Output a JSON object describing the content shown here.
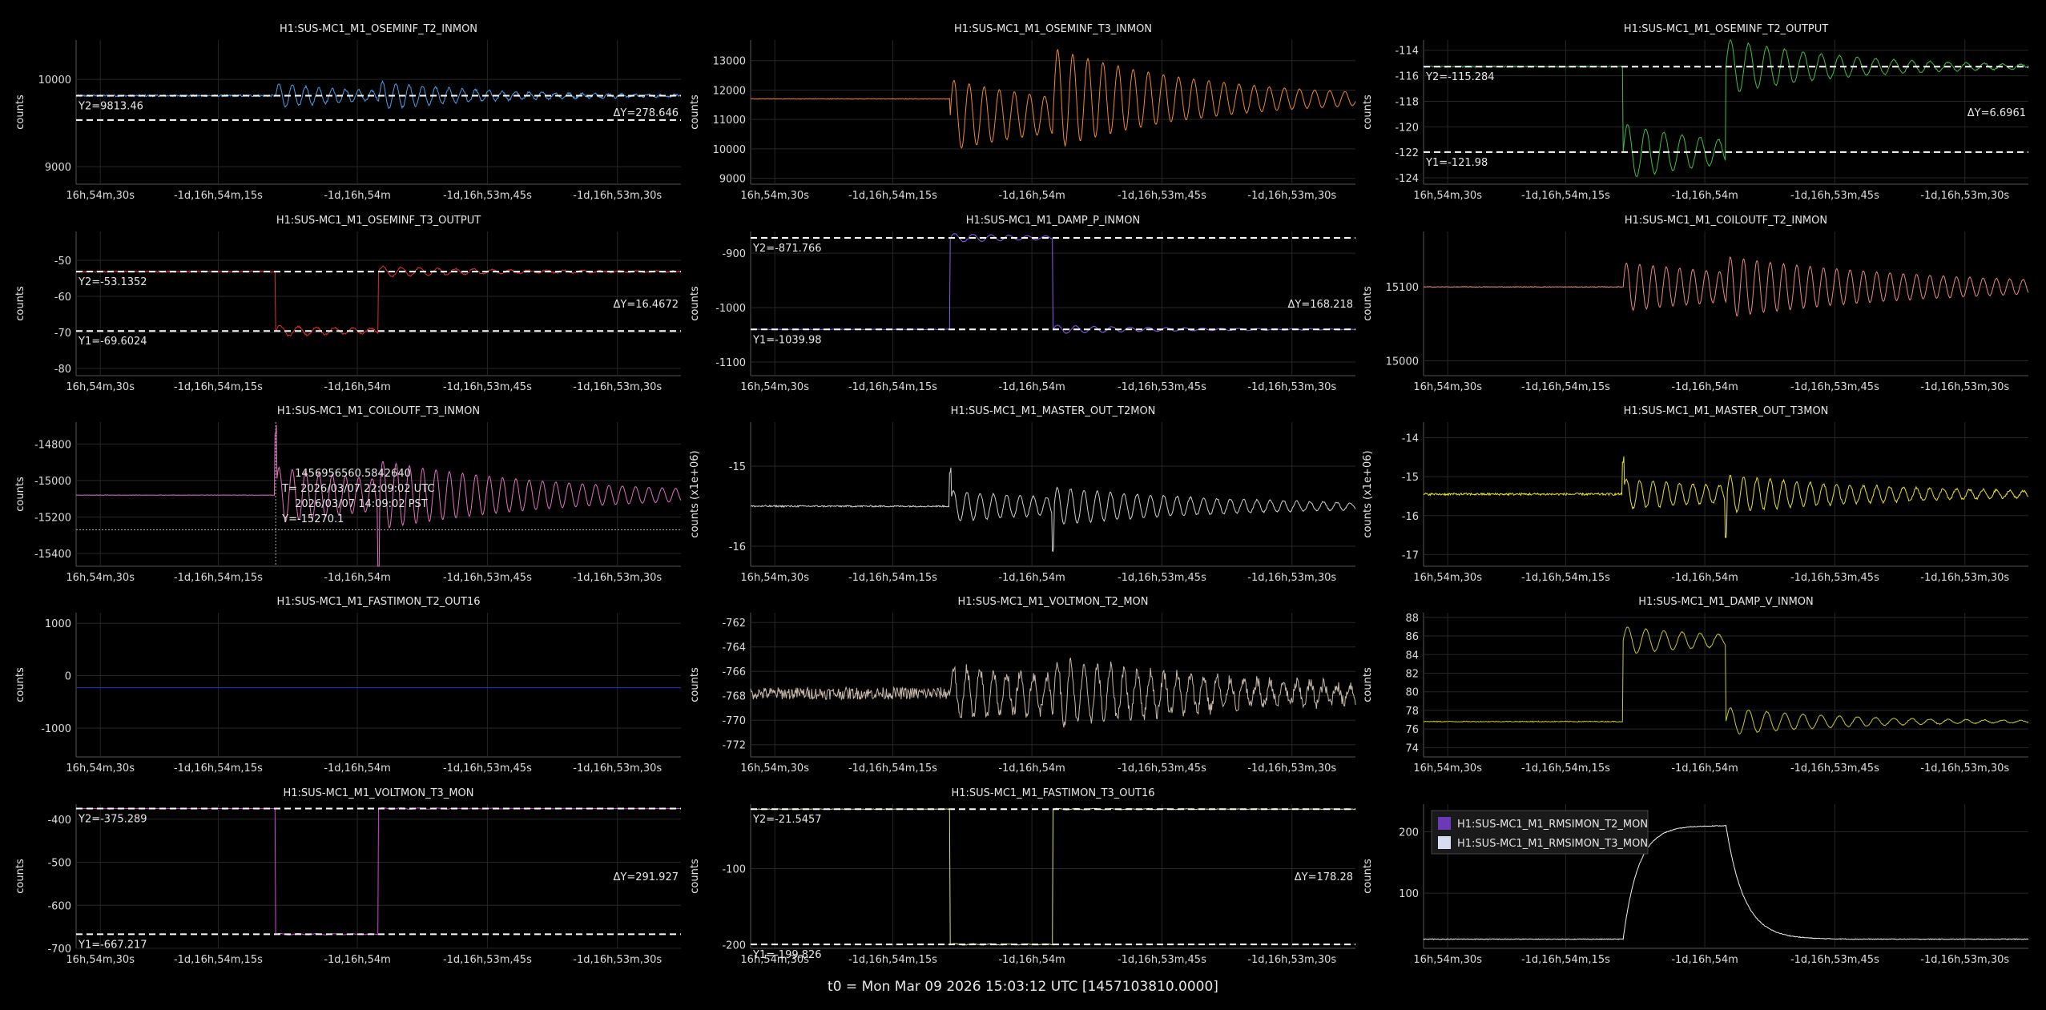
{
  "footer": "t0 = Mon Mar 09 2026 15:03:12 UTC [1457103810.0000]",
  "x_ticks": [
    "16h,54m,30s",
    "-1d,16h,54m,15s",
    "-1d,16h,54m",
    "-1d,16h,53m,45s",
    "-1d,16h,53m,30s"
  ],
  "chart_data": [
    {
      "id": "p1",
      "type": "line",
      "title": "H1:SUS-MC1_M1_OSEMINF_T2_INMON",
      "ylabel": "counts",
      "color": "#4a9ee8",
      "ylim": [
        8800,
        10450
      ],
      "yticks": [
        9000,
        10000
      ],
      "base": 9813,
      "sig": "osc",
      "start": 0.33,
      "amp": 250,
      "period": 0.022,
      "decay": 0.18,
      "kick2": 0.5,
      "noise": 12,
      "cursors": {
        "lines": [
          9813.46,
          9535
        ],
        "labels": [
          {
            "text": "Y2=9813.46",
            "at": 9813.46
          }
        ],
        "delta": "ΔY=278.646"
      }
    },
    {
      "id": "p2",
      "type": "line",
      "title": "H1:SUS-MC1_M1_OSEMINF_T3_INMON",
      "ylabel": "counts",
      "color": "#f08a24",
      "ylim": [
        8800,
        13700
      ],
      "yticks": [
        9000,
        10000,
        11000,
        12000,
        13000
      ],
      "base": 11700,
      "sig": "steposc",
      "start": 0.33,
      "amp": 2200,
      "period": 0.025,
      "decay": 0.25,
      "kick2": 0.5,
      "noise": 10
    },
    {
      "id": "p3",
      "type": "line",
      "title": "H1:SUS-MC1_M1_OSEMINF_T2_OUTPUT",
      "ylabel": "counts",
      "color": "#3fbf3f",
      "ylim": [
        -124.5,
        -113.2
      ],
      "yticks": [
        -114,
        -116,
        -118,
        -120,
        -122,
        -124
      ],
      "base": -115.284,
      "low": -121.98,
      "sig": "square",
      "start": 0.33,
      "end": 0.5,
      "amp": 2.2,
      "period": 0.03,
      "decay": 0.2,
      "noise": 0.05,
      "cursors": {
        "lines": [
          -115.284,
          -121.98
        ],
        "labels": [
          {
            "text": "Y2=-115.284",
            "at": -115.284
          },
          {
            "text": "Y1=-121.98",
            "at": -121.98
          }
        ],
        "delta": "ΔY=6.6961"
      }
    },
    {
      "id": "p4",
      "type": "line",
      "title": "H1:SUS-MC1_M1_OSEMINF_T3_OUTPUT",
      "ylabel": "counts",
      "color": "#e03030",
      "ylim": [
        -82,
        -42
      ],
      "yticks": [
        -50,
        -60,
        -70,
        -80
      ],
      "base": -53.1352,
      "low": -69.6024,
      "sig": "square",
      "start": 0.33,
      "end": 0.5,
      "amp": 1.5,
      "period": 0.03,
      "decay": 0.2,
      "noise": 0.2,
      "cursors": {
        "lines": [
          -53.1352,
          -69.6024
        ],
        "labels": [
          {
            "text": "Y2=-53.1352",
            "at": -53.1352
          },
          {
            "text": "Y1=-69.6024",
            "at": -69.6024
          }
        ],
        "delta": "ΔY=16.4672"
      }
    },
    {
      "id": "p5",
      "type": "line",
      "title": "H1:SUS-MC1_M1_DAMP_P_INMON",
      "ylabel": "counts",
      "color": "#8a5cf0",
      "ylim": [
        -1125,
        -860
      ],
      "yticks": [
        -900,
        -1000,
        -1100
      ],
      "base": -1039.98,
      "low": -871.766,
      "sig": "square",
      "start": 0.33,
      "end": 0.5,
      "amp": 8,
      "period": 0.03,
      "decay": 0.2,
      "noise": 0.5,
      "cursors": {
        "lines": [
          -871.766,
          -1039.98
        ],
        "labels": [
          {
            "text": "Y2=-871.766",
            "at": -871.766
          },
          {
            "text": "Y1=-1039.98",
            "at": -1039.98
          }
        ],
        "delta": "ΔY=168.218"
      }
    },
    {
      "id": "p6",
      "type": "line",
      "title": "H1:SUS-MC1_M1_COILOUTF_T2_INMON",
      "ylabel": "counts",
      "color": "#e8897a",
      "ylim": [
        14980,
        15175
      ],
      "yticks": [
        15000,
        15100
      ],
      "base": 15100,
      "sig": "osc",
      "start": 0.33,
      "amp": 60,
      "period": 0.022,
      "decay": 0.35,
      "kick2": 0.5,
      "noise": 0.5
    },
    {
      "id": "p7",
      "type": "line",
      "title": "H1:SUS-MC1_M1_COILOUTF_T3_INMON",
      "ylabel": "counts",
      "color": "#e070c0",
      "ylim": [
        -15470,
        -14680
      ],
      "yticks": [
        -14800,
        -15000,
        -15200,
        -15400
      ],
      "base": -15080,
      "sig": "spikeosc",
      "start": 0.33,
      "amp": 280,
      "period": 0.022,
      "decay": 0.3,
      "kick2": 0.5,
      "noise": 1,
      "crosshair": {
        "xfrac": 0.33,
        "y": -15270.1
      },
      "tooltip": {
        "gps": "1456956560.5842640",
        "utc": "T= 2026/03/07 22:09:02 UTC",
        "local": "2026/03/07 14:09:02 PST",
        "y": "Y=-15270.1"
      }
    },
    {
      "id": "p8",
      "type": "line",
      "title": "H1:SUS-MC1_M1_MASTER_OUT_T2MON",
      "ylabel": "counts (x1e+06)",
      "color": "#d0d0d0",
      "ylim": [
        -16.25,
        -14.45
      ],
      "yticks": [
        -15,
        -16
      ],
      "base": -15.5,
      "sig": "spikeosc",
      "start": 0.33,
      "amp": 0.35,
      "period": 0.022,
      "decay": 0.3,
      "kick2": 0.5,
      "noise": 0.01
    },
    {
      "id": "p9",
      "type": "line",
      "title": "H1:SUS-MC1_M1_MASTER_OUT_T3MON",
      "ylabel": "counts (x1e+06)",
      "color": "#e8e020",
      "ylim": [
        -17.3,
        -13.6
      ],
      "yticks": [
        -14,
        -15,
        -16,
        -17
      ],
      "base": -15.45,
      "sig": "spikeosc",
      "start": 0.33,
      "amp": 0.7,
      "period": 0.022,
      "decay": 0.3,
      "kick2": 0.5,
      "noise": 0.03
    },
    {
      "id": "p10",
      "type": "line",
      "title": "H1:SUS-MC1_M1_FASTIMON_T2_OUT16",
      "ylabel": "counts",
      "color": "#2030e0",
      "ylim": [
        -1550,
        1200
      ],
      "yticks": [
        1000,
        0,
        -1000
      ],
      "base": -230,
      "sig": "flat",
      "noise": 0
    },
    {
      "id": "p11",
      "type": "line",
      "title": "H1:SUS-MC1_M1_VOLTMON_T2_MON",
      "ylabel": "counts",
      "color": "#c8b8a8",
      "ylim": [
        -773,
        -761.2
      ],
      "yticks": [
        -762,
        -764,
        -766,
        -768,
        -770,
        -772
      ],
      "base": -767.8,
      "sig": "osc",
      "start": 0.33,
      "amp": 4,
      "period": 0.022,
      "decay": 0.35,
      "kick2": 0.5,
      "noise": 0.5
    },
    {
      "id": "p12",
      "type": "line",
      "title": "H1:SUS-MC1_M1_DAMP_V_INMON",
      "ylabel": "counts",
      "color": "#c8c820",
      "ylim": [
        73,
        88.5
      ],
      "yticks": [
        88,
        86,
        84,
        82,
        80,
        78,
        76,
        74
      ],
      "base": 76.8,
      "low": 85.5,
      "sig": "square",
      "start": 0.33,
      "end": 0.5,
      "amp": 1.5,
      "period": 0.03,
      "decay": 0.2,
      "noise": 0.05
    },
    {
      "id": "p13",
      "type": "line",
      "title": "H1:SUS-MC1_M1_VOLTMON_T3_MON",
      "ylabel": "counts",
      "color": "#e040e0",
      "ylim": [
        -700,
        -365
      ],
      "yticks": [
        -400,
        -500,
        -600,
        -700
      ],
      "base": -375.289,
      "low": -667.217,
      "sig": "square",
      "start": 0.33,
      "end": 0.5,
      "amp": 2,
      "period": 0.03,
      "decay": 0.2,
      "noise": 0.3,
      "cursors": {
        "lines": [
          -375.289,
          -667.217
        ],
        "labels": [
          {
            "text": "Y2=-375.289",
            "at": -375.289
          },
          {
            "text": "Y1=-667.217",
            "at": -667.217
          }
        ],
        "delta": "ΔY=291.927"
      }
    },
    {
      "id": "p14",
      "type": "line",
      "title": "H1:SUS-MC1_M1_FASTIMON_T3_OUT16",
      "ylabel": "counts",
      "color": "#d8e060",
      "ylim": [
        -205,
        -15
      ],
      "yticks": [
        -100,
        -200
      ],
      "base": -21.5457,
      "low": -199.826,
      "sig": "square",
      "start": 0.33,
      "end": 0.5,
      "amp": 1,
      "period": 0.03,
      "decay": 0.2,
      "noise": 0.3,
      "cursors": {
        "lines": [
          -21.5457,
          -199.826
        ],
        "labels": [
          {
            "text": "Y2=-21.5457",
            "at": -21.5457
          },
          {
            "text": "Y1=-199.826",
            "at": -199.826
          }
        ],
        "delta": "ΔY=178.28"
      }
    },
    {
      "id": "p15",
      "type": "line",
      "title": "",
      "ylabel": "counts",
      "color": "#f0f0f0",
      "ylim": [
        10,
        245
      ],
      "yticks": [
        100,
        200
      ],
      "base": 25,
      "low": 210,
      "sig": "smoothsquare",
      "start": 0.33,
      "end": 0.5,
      "noise": 0.6,
      "legend": {
        "placement": "top-left",
        "entries": [
          {
            "name": "H1:SUS-MC1_M1_RMSIMON_T2_MON",
            "color": "#6a3ab8"
          },
          {
            "name": "H1:SUS-MC1_M1_RMSIMON_T3_MON",
            "color": "#d8dcf0"
          }
        ]
      }
    }
  ]
}
